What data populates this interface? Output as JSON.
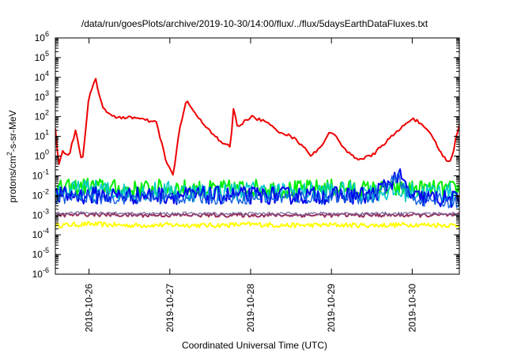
{
  "chart_data": {
    "type": "line",
    "title": "/data/run/goesPlots/archive/2019-10-30/14:00/flux/../flux/5daysEarthDataFluxes.txt",
    "xlabel": "Coordinated Universal Time (UTC)",
    "ylabel_parts": {
      "pre": "protons/cm",
      "sup": "2",
      "post": "-s-sr-MeV"
    },
    "y_scale": "log",
    "ylim": [
      1e-06,
      1000000.0
    ],
    "y_ticks": [
      {
        "base": "10",
        "exp": "-6",
        "v": -6
      },
      {
        "base": "10",
        "exp": "-5",
        "v": -5
      },
      {
        "base": "10",
        "exp": "-4",
        "v": -4
      },
      {
        "base": "10",
        "exp": "-3",
        "v": -3
      },
      {
        "base": "10",
        "exp": "-2",
        "v": -2
      },
      {
        "base": "10",
        "exp": "-1",
        "v": -1
      },
      {
        "base": "10",
        "exp": "0",
        "v": 0
      },
      {
        "base": "10",
        "exp": "1",
        "v": 1
      },
      {
        "base": "10",
        "exp": "2",
        "v": 2
      },
      {
        "base": "10",
        "exp": "3",
        "v": 3
      },
      {
        "base": "10",
        "exp": "4",
        "v": 4
      },
      {
        "base": "10",
        "exp": "5",
        "v": 5
      },
      {
        "base": "10",
        "exp": "6",
        "v": 6
      }
    ],
    "x_range_days": [
      "2019-10-25T14:00",
      "2019-10-30T14:00"
    ],
    "x_ticks": [
      "2019-10-26",
      "2019-10-27",
      "2019-10-28",
      "2019-10-29",
      "2019-10-30"
    ],
    "grid": false,
    "legend": "none",
    "series_styles": [
      {
        "color": "#ffff00",
        "width": 2.0
      },
      {
        "color": "#00ee00",
        "width": 2.0
      },
      {
        "color": "#00c8c8",
        "width": 1.6
      },
      {
        "color": "#0000ee",
        "width": 2.0
      },
      {
        "color": "#1560e0",
        "width": 1.4
      },
      {
        "color": "#9a3060",
        "width": 2.0
      },
      {
        "color": "#7a6a9a",
        "width": 1.2
      },
      {
        "color": "#ee0000",
        "width": 2.0
      }
    ],
    "series": [
      {
        "color_index": 0,
        "points": [
          [
            "2019-10-25T14:00",
            0.0003
          ],
          [
            "2019-10-26T00:00",
            0.00035
          ],
          [
            "2019-10-26T12:00",
            0.0003
          ],
          [
            "2019-10-27T00:00",
            0.00032
          ],
          [
            "2019-10-27T12:00",
            0.0003
          ],
          [
            "2019-10-28T00:00",
            0.00034
          ],
          [
            "2019-10-28T12:00",
            0.0003
          ],
          [
            "2019-10-29T00:00",
            0.00032
          ],
          [
            "2019-10-29T12:00",
            0.0003
          ],
          [
            "2019-10-30T00:00",
            0.00033
          ],
          [
            "2019-10-30T14:00",
            0.0003
          ]
        ]
      },
      {
        "color_index": 1,
        "points": [
          [
            "2019-10-25T14:00",
            0.02
          ],
          [
            "2019-10-26T00:00",
            0.03
          ],
          [
            "2019-10-26T12:00",
            0.02
          ],
          [
            "2019-10-27T00:00",
            0.025
          ],
          [
            "2019-10-27T12:00",
            0.02
          ],
          [
            "2019-10-28T00:00",
            0.025
          ],
          [
            "2019-10-28T12:00",
            0.02
          ],
          [
            "2019-10-29T00:00",
            0.025
          ],
          [
            "2019-10-29T12:00",
            0.02
          ],
          [
            "2019-10-30T00:00",
            0.022
          ],
          [
            "2019-10-30T14:00",
            0.02
          ]
        ]
      },
      {
        "color_index": 3,
        "points": [
          [
            "2019-10-25T14:00",
            0.01
          ],
          [
            "2019-10-26T00:00",
            0.01
          ],
          [
            "2019-10-26T12:00",
            0.01
          ],
          [
            "2019-10-27T00:00",
            0.01
          ],
          [
            "2019-10-27T12:00",
            0.01
          ],
          [
            "2019-10-28T00:00",
            0.01
          ],
          [
            "2019-10-28T12:00",
            0.01
          ],
          [
            "2019-10-29T00:00",
            0.01
          ],
          [
            "2019-10-29T12:00",
            0.01
          ],
          [
            "2019-10-29T20:00",
            0.1
          ],
          [
            "2019-10-30T00:00",
            0.008
          ],
          [
            "2019-10-30T14:00",
            0.006
          ]
        ]
      },
      {
        "color_index": 5,
        "points": [
          [
            "2019-10-25T14:00",
            0.001
          ],
          [
            "2019-10-26T00:00",
            0.0011
          ],
          [
            "2019-10-26T12:00",
            0.001
          ],
          [
            "2019-10-27T00:00",
            0.001
          ],
          [
            "2019-10-27T12:00",
            0.001
          ],
          [
            "2019-10-28T00:00",
            0.001
          ],
          [
            "2019-10-28T12:00",
            0.001
          ],
          [
            "2019-10-29T00:00",
            0.001
          ],
          [
            "2019-10-29T12:00",
            0.001
          ],
          [
            "2019-10-30T00:00",
            0.001
          ],
          [
            "2019-10-30T14:00",
            0.001
          ]
        ]
      },
      {
        "color_index": 7,
        "points": [
          [
            "2019-10-25T14:00",
            30
          ],
          [
            "2019-10-25T15:00",
            0.3
          ],
          [
            "2019-10-25T16:00",
            2
          ],
          [
            "2019-10-25T18:00",
            1
          ],
          [
            "2019-10-25T20:00",
            20
          ],
          [
            "2019-10-25T22:00",
            0.5
          ],
          [
            "2019-10-26T00:00",
            1000
          ],
          [
            "2019-10-26T02:00",
            8000
          ],
          [
            "2019-10-26T04:00",
            300
          ],
          [
            "2019-10-26T08:00",
            80
          ],
          [
            "2019-10-26T12:00",
            100
          ],
          [
            "2019-10-26T16:00",
            70
          ],
          [
            "2019-10-26T20:00",
            50
          ],
          [
            "2019-10-26T23:00",
            0.5
          ],
          [
            "2019-10-27T01:00",
            0.1
          ],
          [
            "2019-10-27T03:00",
            30
          ],
          [
            "2019-10-27T05:00",
            700
          ],
          [
            "2019-10-27T08:00",
            100
          ],
          [
            "2019-10-27T12:00",
            20
          ],
          [
            "2019-10-27T15:00",
            5
          ],
          [
            "2019-10-27T18:00",
            3
          ],
          [
            "2019-10-27T19:00",
            400
          ],
          [
            "2019-10-27T20:00",
            30
          ],
          [
            "2019-10-28T00:00",
            100
          ],
          [
            "2019-10-28T04:00",
            60
          ],
          [
            "2019-10-28T08:00",
            20
          ],
          [
            "2019-10-28T12:00",
            10
          ],
          [
            "2019-10-28T16:00",
            3
          ],
          [
            "2019-10-28T18:00",
            1
          ],
          [
            "2019-10-28T20:00",
            2
          ],
          [
            "2019-10-29T00:00",
            20
          ],
          [
            "2019-10-29T04:00",
            2
          ],
          [
            "2019-10-29T08:00",
            0.7
          ],
          [
            "2019-10-29T12:00",
            1
          ],
          [
            "2019-10-29T16:00",
            5
          ],
          [
            "2019-10-29T20:00",
            20
          ],
          [
            "2019-10-30T00:00",
            90
          ],
          [
            "2019-10-30T02:00",
            50
          ],
          [
            "2019-10-30T06:00",
            10
          ],
          [
            "2019-10-30T09:00",
            1
          ],
          [
            "2019-10-30T11:00",
            0.5
          ],
          [
            "2019-10-30T12:00",
            1
          ],
          [
            "2019-10-30T13:00",
            10
          ],
          [
            "2019-10-30T14:00",
            40
          ]
        ]
      }
    ]
  }
}
